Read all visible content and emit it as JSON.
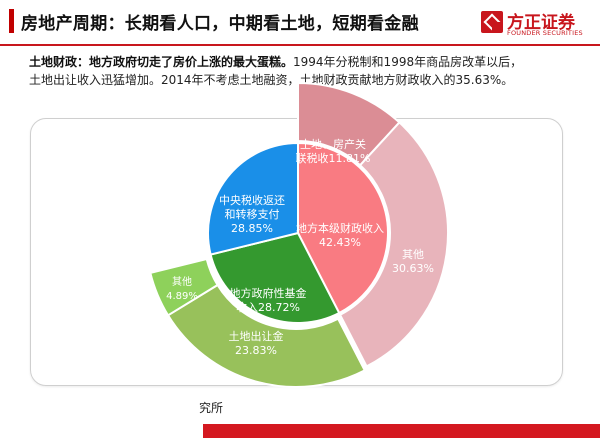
{
  "header": {
    "title": "房地产周期：长期看人口，中期看土地，短期看金融",
    "logo_cn": "方正证券",
    "logo_en": "FOUNDER SECURITIES",
    "accent_color": "#c8161d"
  },
  "summary": {
    "lead": "土地财政：地方政府切走了房价上涨的最大蛋糕。",
    "line1_rest": "1994年分税制和1998年商品房改革以后，",
    "line2": "土地出让收入迅猛增加。2014年不考虑土地融资，土地财政贡献地方财政收入的35.63%。"
  },
  "footer": {
    "text": "资料来源：财政部，方正证券研究所",
    "visible_fragment": "究所"
  },
  "chart_data": {
    "type": "sunburst",
    "title": "",
    "inner": [
      {
        "label": "地方本级财政收入",
        "value_label": "42.43%",
        "value": 42.43,
        "color": "#f97b82"
      },
      {
        "label": "地方政府性基金收入",
        "value_label": "28.72%",
        "value": 28.72,
        "color": "#34992f"
      },
      {
        "label": "中央税收返还和转移支付",
        "value_label": "28.85%",
        "value": 28.85,
        "color": "#1a8fe8"
      }
    ],
    "outer": [
      {
        "parent": "地方本级财政收入",
        "label": "土地、房产关联税收",
        "value_label": "11.81%",
        "value": 11.81,
        "color": "#db8d95"
      },
      {
        "parent": "地方本级财政收入",
        "label": "其他",
        "value_label": "30.63%",
        "value": 30.63,
        "color": "#e8b4bb"
      },
      {
        "parent": "地方政府性基金收入",
        "label": "土地出让金",
        "value_label": "23.83%",
        "value": 23.83,
        "color": "#98c15b"
      },
      {
        "parent": "地方政府性基金收入",
        "label": "其他",
        "value_label": "4.89%",
        "value": 4.89,
        "color": "#8ed15b"
      }
    ]
  }
}
